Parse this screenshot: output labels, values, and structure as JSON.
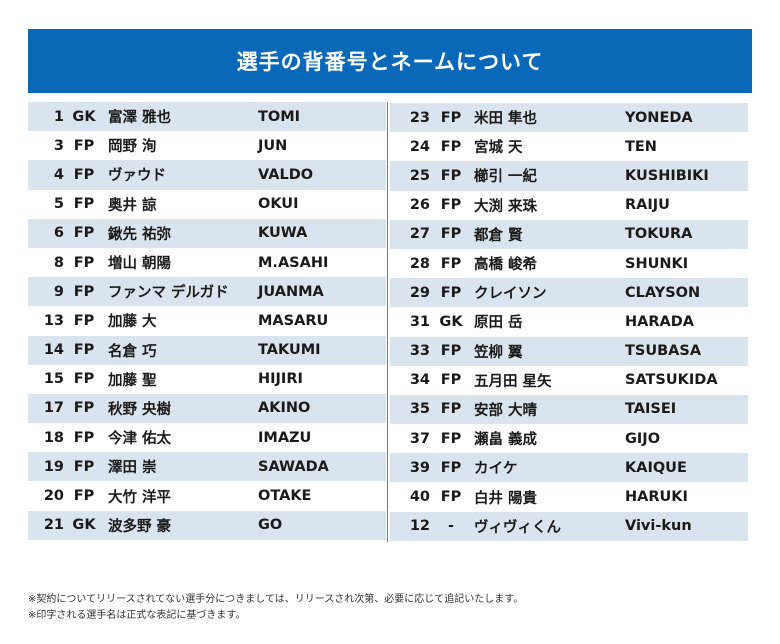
{
  "title": "選手の背番号とネームについて",
  "roster_left": [
    {
      "num": "1",
      "pos": "GK",
      "name": "富澤 雅也",
      "print": "TOMI"
    },
    {
      "num": "3",
      "pos": "FP",
      "name": "岡野 洵",
      "print": "JUN"
    },
    {
      "num": "4",
      "pos": "FP",
      "name": "ヴァウド",
      "print": "VALDO"
    },
    {
      "num": "5",
      "pos": "FP",
      "name": "奥井 諒",
      "print": "OKUI"
    },
    {
      "num": "6",
      "pos": "FP",
      "name": "鍬先 祐弥",
      "print": "KUWA"
    },
    {
      "num": "8",
      "pos": "FP",
      "name": "増山 朝陽",
      "print": "M.ASAHI"
    },
    {
      "num": "9",
      "pos": "FP",
      "name": "ファンマ デルガド",
      "print": "JUANMA"
    },
    {
      "num": "13",
      "pos": "FP",
      "name": "加藤 大",
      "print": "MASARU"
    },
    {
      "num": "14",
      "pos": "FP",
      "name": "名倉 巧",
      "print": "TAKUMI"
    },
    {
      "num": "15",
      "pos": "FP",
      "name": "加藤 聖",
      "print": "HIJIRI"
    },
    {
      "num": "17",
      "pos": "FP",
      "name": "秋野 央樹",
      "print": "AKINO"
    },
    {
      "num": "18",
      "pos": "FP",
      "name": "今津 佑太",
      "print": "IMAZU"
    },
    {
      "num": "19",
      "pos": "FP",
      "name": "澤田 崇",
      "print": "SAWADA"
    },
    {
      "num": "20",
      "pos": "FP",
      "name": "大竹 洋平",
      "print": "OTAKE"
    },
    {
      "num": "21",
      "pos": "GK",
      "name": "波多野 豪",
      "print": "GO"
    }
  ],
  "roster_right": [
    {
      "num": "23",
      "pos": "FP",
      "name": "米田 隼也",
      "print": "YONEDA"
    },
    {
      "num": "24",
      "pos": "FP",
      "name": "宮城 天",
      "print": "TEN"
    },
    {
      "num": "25",
      "pos": "FP",
      "name": "櫛引 一紀",
      "print": "KUSHIBIKI"
    },
    {
      "num": "26",
      "pos": "FP",
      "name": "大渕 来珠",
      "print": "RAIJU"
    },
    {
      "num": "27",
      "pos": "FP",
      "name": "都倉 賢",
      "print": "TOKURA"
    },
    {
      "num": "28",
      "pos": "FP",
      "name": "高橋 峻希",
      "print": "SHUNKI"
    },
    {
      "num": "29",
      "pos": "FP",
      "name": "クレイソン",
      "print": "CLAYSON"
    },
    {
      "num": "31",
      "pos": "GK",
      "name": "原田 岳",
      "print": "HARADA"
    },
    {
      "num": "33",
      "pos": "FP",
      "name": "笠柳 翼",
      "print": "TSUBASA"
    },
    {
      "num": "34",
      "pos": "FP",
      "name": "五月田 星矢",
      "print": "SATSUKIDA"
    },
    {
      "num": "35",
      "pos": "FP",
      "name": "安部 大晴",
      "print": "TAISEI"
    },
    {
      "num": "37",
      "pos": "FP",
      "name": "瀬畠 義成",
      "print": "GIJO"
    },
    {
      "num": "39",
      "pos": "FP",
      "name": "カイケ",
      "print": "KAIQUE"
    },
    {
      "num": "40",
      "pos": "FP",
      "name": "白井 陽貴",
      "print": "HARUKI"
    },
    {
      "num": "12",
      "pos": "-",
      "name": "ヴィヴィくん",
      "print": "Vivi-kun"
    }
  ],
  "notes": [
    "※契約についてリリースされてない選手分につきましては、リリースされ次第、必要に応じて追記いたします。",
    "※印字される選手名は正式な表記に基づきます。"
  ],
  "colors": {
    "banner": "#0a68b9",
    "row_shade": "#d9e4ef",
    "text": "#1a1a1a"
  }
}
